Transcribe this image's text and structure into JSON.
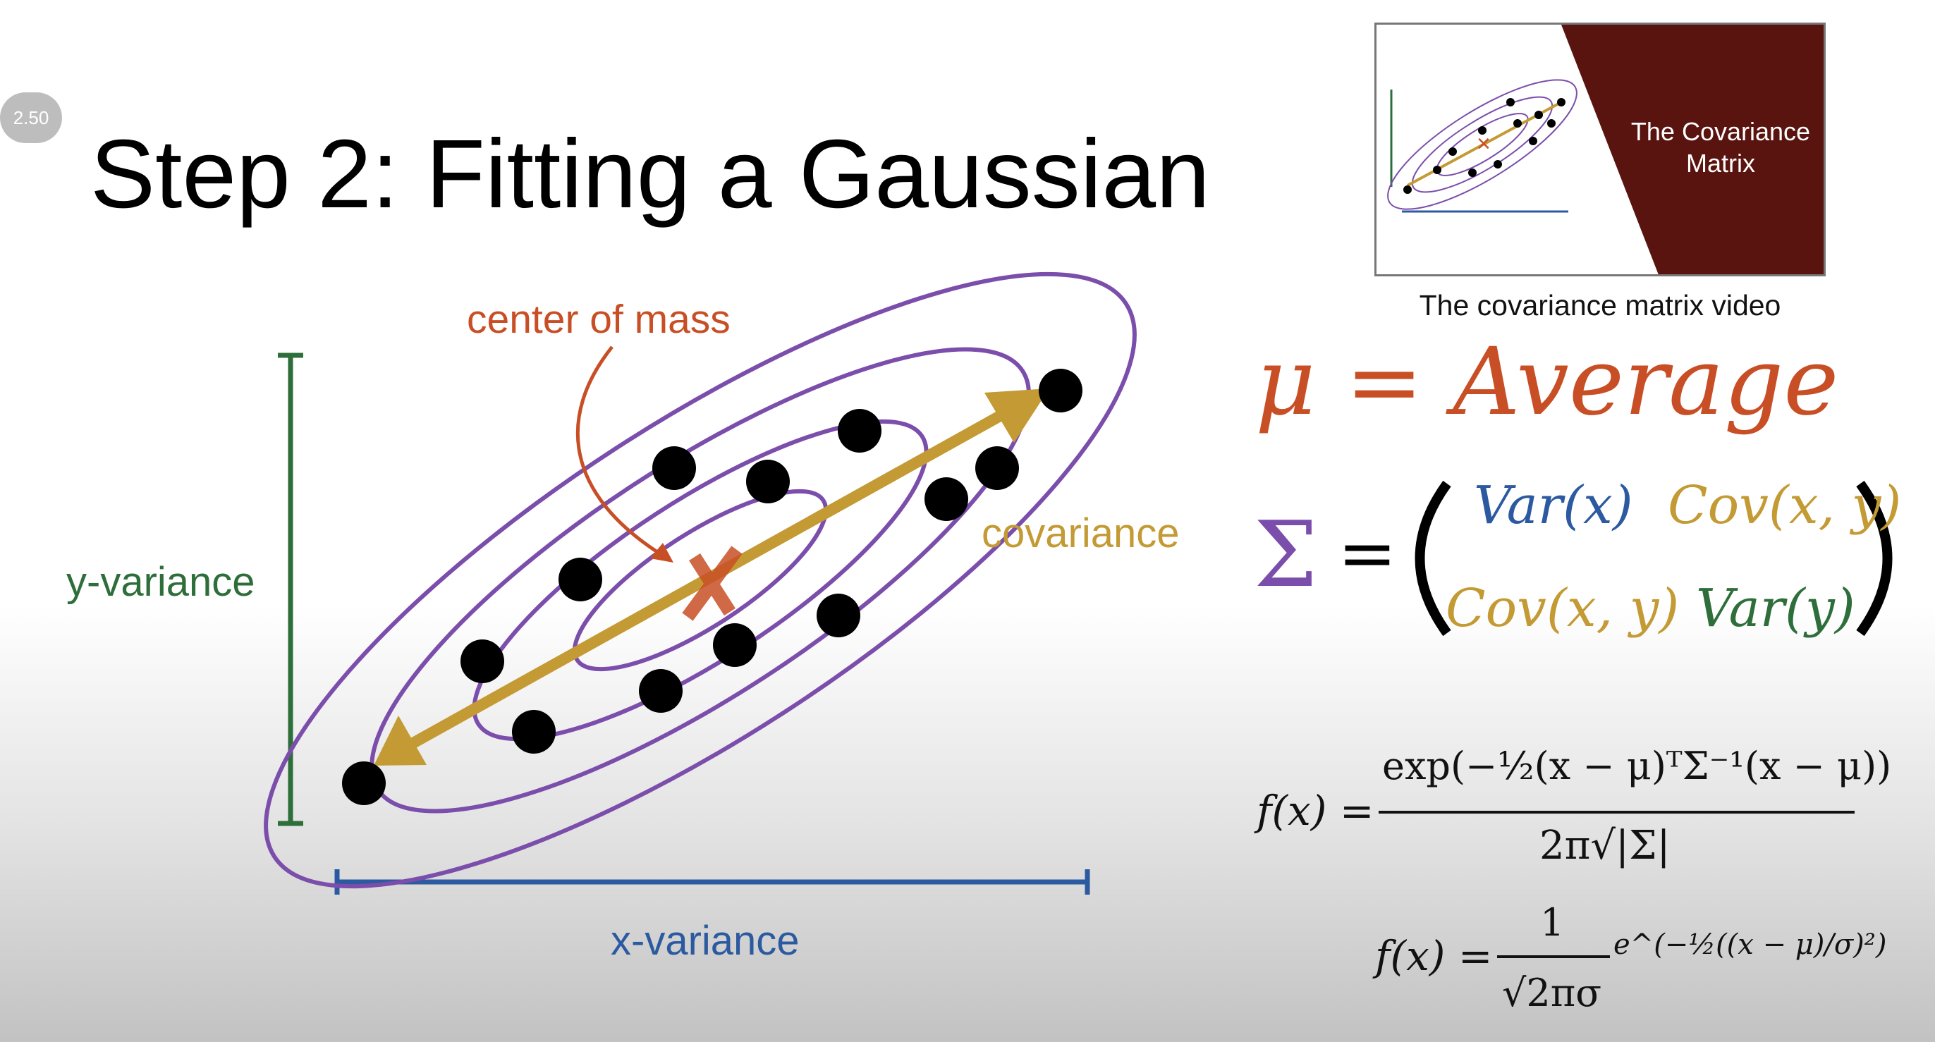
{
  "speed_badge": "2.50",
  "title": "Step 2: Fitting a Gaussian",
  "thumbnail": {
    "title_line1": "The Covariance",
    "title_line2": "Matrix",
    "caption": "The covariance matrix video"
  },
  "diagram": {
    "center_label": "center of mass",
    "covariance_label": "covariance",
    "y_label": "y-variance",
    "x_label": "x-variance"
  },
  "equations": {
    "mu_line": "μ = Average",
    "sigma": "Σ",
    "equals": "=",
    "matrix": {
      "a11": "Var(x)",
      "a12": "Cov(x, y)",
      "a21": "Cov(x, y)",
      "a22": "Var(y)"
    },
    "f1_lhs": "f(x) =",
    "f1_numerator": "exp(−½(x − μ)ᵀΣ⁻¹(x − μ))",
    "f1_denominator": "2π√|Σ|",
    "f2_lhs": "f(x) =",
    "f2_numerator": "1",
    "f2_denominator": "√2πσ",
    "f2_exponent": "e^(−½((x − μ)/σ)²)"
  },
  "colors": {
    "orange": "#c84f25",
    "gold": "#c39a33",
    "purple": "#7b4eab",
    "green": "#2e6e3a",
    "blue": "#2c5aa0",
    "dark_red": "#5a140f"
  }
}
